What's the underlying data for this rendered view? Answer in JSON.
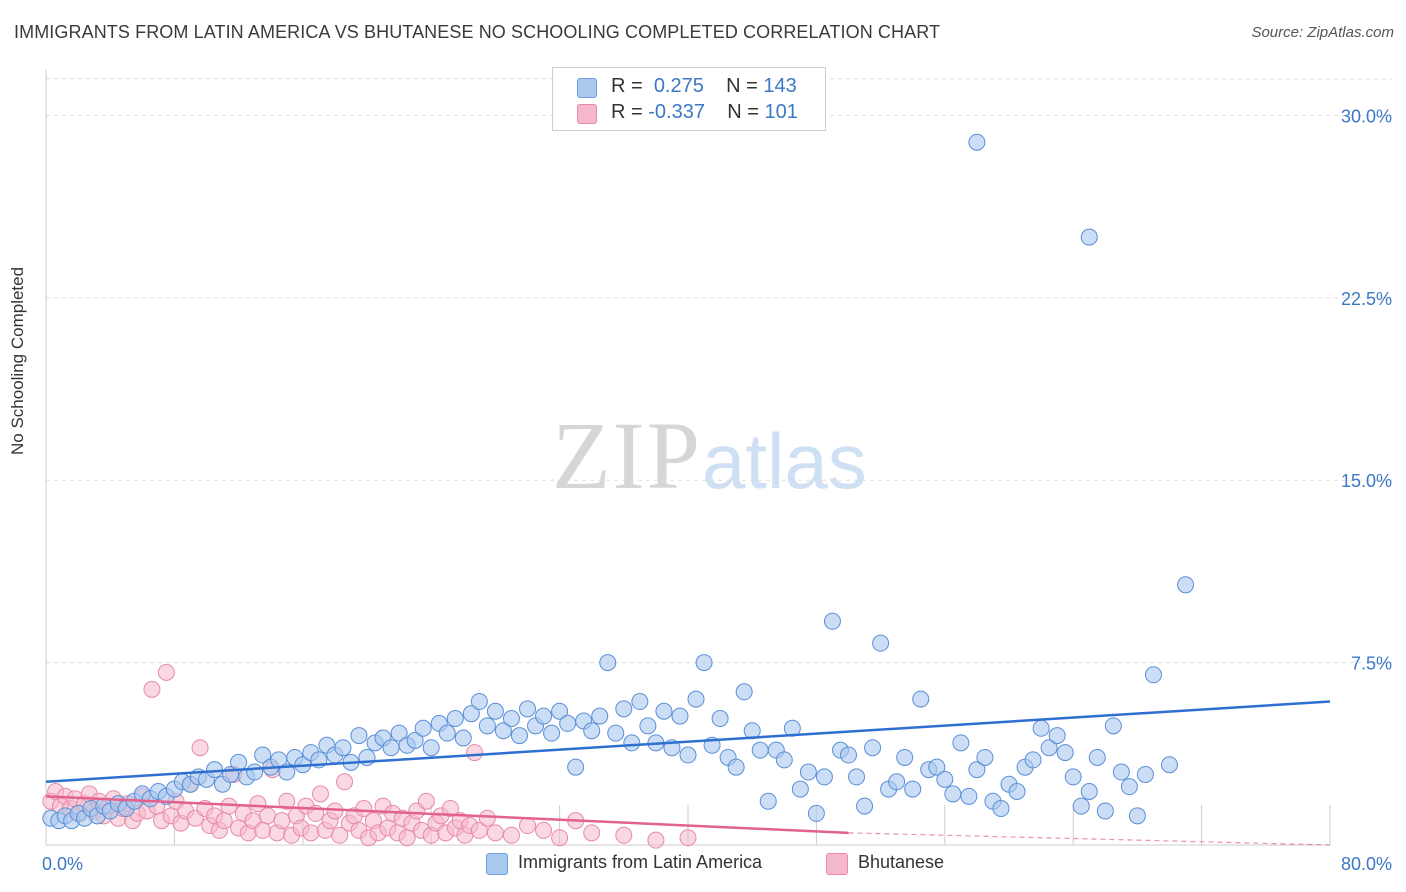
{
  "title": "IMMIGRANTS FROM LATIN AMERICA VS BHUTANESE NO SCHOOLING COMPLETED CORRELATION CHART",
  "source": "Source: ZipAtlas.com",
  "watermark": {
    "zip": "ZIP",
    "atlas": "atlas"
  },
  "legend": {
    "r_label": "R =",
    "n_label": "N =",
    "series": [
      {
        "r": "0.275",
        "n": "143",
        "color": "#a9c8ee",
        "edge": "#6f9fdb"
      },
      {
        "r": "-0.337",
        "n": "101",
        "color": "#f5b8cb",
        "edge": "#e98aa8"
      }
    ]
  },
  "colors": {
    "blue_fill": "#a9c8ee",
    "blue_edge": "#5b8fd6",
    "blue_line": "#2e6fd0",
    "pink_fill": "#f5b8cb",
    "pink_edge": "#e78aa8",
    "pink_line": "#e2628c",
    "tick_label": "#3b78c7",
    "grid": "#dddddd"
  },
  "chart_data": {
    "type": "scatter",
    "title": "IMMIGRANTS FROM LATIN AMERICA VS BHUTANESE NO SCHOOLING COMPLETED CORRELATION CHART",
    "xlabel": "",
    "ylabel": "No Schooling Completed",
    "xlim": [
      0,
      80
    ],
    "ylim": [
      0,
      31.5
    ],
    "x_tick_labels": [
      "0.0%",
      "80.0%"
    ],
    "y_ticks": [
      7.5,
      15.0,
      22.5,
      30.0
    ],
    "y_tick_labels": [
      "7.5%",
      "15.0%",
      "22.5%",
      "30.0%"
    ],
    "grid": "horizontal dashed",
    "legend_position": "top-center",
    "series": [
      {
        "name": "Immigrants from Latin America",
        "trend": {
          "x": [
            0,
            80
          ],
          "y": [
            2.6,
            5.9
          ]
        },
        "points": [
          [
            0.3,
            1.1
          ],
          [
            0.8,
            1.0
          ],
          [
            1.2,
            1.2
          ],
          [
            1.6,
            1.0
          ],
          [
            2.0,
            1.3
          ],
          [
            2.4,
            1.1
          ],
          [
            2.8,
            1.5
          ],
          [
            3.2,
            1.2
          ],
          [
            3.6,
            1.6
          ],
          [
            4.0,
            1.4
          ],
          [
            4.5,
            1.7
          ],
          [
            5.0,
            1.5
          ],
          [
            5.5,
            1.8
          ],
          [
            6.0,
            2.1
          ],
          [
            6.5,
            1.9
          ],
          [
            7.0,
            2.2
          ],
          [
            7.5,
            2.0
          ],
          [
            8.0,
            2.3
          ],
          [
            8.5,
            2.6
          ],
          [
            9.0,
            2.5
          ],
          [
            9.5,
            2.8
          ],
          [
            10.0,
            2.7
          ],
          [
            10.5,
            3.1
          ],
          [
            11.0,
            2.5
          ],
          [
            11.5,
            2.9
          ],
          [
            12.0,
            3.4
          ],
          [
            12.5,
            2.8
          ],
          [
            13.0,
            3.0
          ],
          [
            13.5,
            3.7
          ],
          [
            14.0,
            3.2
          ],
          [
            14.5,
            3.5
          ],
          [
            15.0,
            3.0
          ],
          [
            15.5,
            3.6
          ],
          [
            16.0,
            3.3
          ],
          [
            16.5,
            3.8
          ],
          [
            17.0,
            3.5
          ],
          [
            17.5,
            4.1
          ],
          [
            18.0,
            3.7
          ],
          [
            18.5,
            4.0
          ],
          [
            19.0,
            3.4
          ],
          [
            19.5,
            4.5
          ],
          [
            20.0,
            3.6
          ],
          [
            20.5,
            4.2
          ],
          [
            21.0,
            4.4
          ],
          [
            21.5,
            4.0
          ],
          [
            22.0,
            4.6
          ],
          [
            22.5,
            4.1
          ],
          [
            23.0,
            4.3
          ],
          [
            23.5,
            4.8
          ],
          [
            24.0,
            4.0
          ],
          [
            24.5,
            5.0
          ],
          [
            25.0,
            4.6
          ],
          [
            25.5,
            5.2
          ],
          [
            26.0,
            4.4
          ],
          [
            26.5,
            5.4
          ],
          [
            27.0,
            5.9
          ],
          [
            27.5,
            4.9
          ],
          [
            28.0,
            5.5
          ],
          [
            28.5,
            4.7
          ],
          [
            29.0,
            5.2
          ],
          [
            29.5,
            4.5
          ],
          [
            30.0,
            5.6
          ],
          [
            30.5,
            4.9
          ],
          [
            31.0,
            5.3
          ],
          [
            31.5,
            4.6
          ],
          [
            32.0,
            5.5
          ],
          [
            32.5,
            5.0
          ],
          [
            33.0,
            3.2
          ],
          [
            33.5,
            5.1
          ],
          [
            34.0,
            4.7
          ],
          [
            34.5,
            5.3
          ],
          [
            35.0,
            7.5
          ],
          [
            35.5,
            4.6
          ],
          [
            36.0,
            5.6
          ],
          [
            36.5,
            4.2
          ],
          [
            37.0,
            5.9
          ],
          [
            37.5,
            4.9
          ],
          [
            38.0,
            4.2
          ],
          [
            38.5,
            5.5
          ],
          [
            39.0,
            4.0
          ],
          [
            39.5,
            5.3
          ],
          [
            40.0,
            3.7
          ],
          [
            40.5,
            6.0
          ],
          [
            41.0,
            7.5
          ],
          [
            41.5,
            4.1
          ],
          [
            42.0,
            5.2
          ],
          [
            42.5,
            3.6
          ],
          [
            43.0,
            3.2
          ],
          [
            43.5,
            6.3
          ],
          [
            44.0,
            4.7
          ],
          [
            44.5,
            3.9
          ],
          [
            45.0,
            1.8
          ],
          [
            45.5,
            3.9
          ],
          [
            46.0,
            3.5
          ],
          [
            46.5,
            4.8
          ],
          [
            47.0,
            2.3
          ],
          [
            47.5,
            3.0
          ],
          [
            48.0,
            1.3
          ],
          [
            48.5,
            2.8
          ],
          [
            49.0,
            9.2
          ],
          [
            49.5,
            3.9
          ],
          [
            50.0,
            3.7
          ],
          [
            50.5,
            2.8
          ],
          [
            51.0,
            1.6
          ],
          [
            51.5,
            4.0
          ],
          [
            52.0,
            8.3
          ],
          [
            52.5,
            2.3
          ],
          [
            53.0,
            2.6
          ],
          [
            53.5,
            3.6
          ],
          [
            54.0,
            2.3
          ],
          [
            54.5,
            6.0
          ],
          [
            55.0,
            3.1
          ],
          [
            55.5,
            3.2
          ],
          [
            56.0,
            2.7
          ],
          [
            56.5,
            2.1
          ],
          [
            57.0,
            4.2
          ],
          [
            57.5,
            2.0
          ],
          [
            58.0,
            3.1
          ],
          [
            58.5,
            3.6
          ],
          [
            59.0,
            1.8
          ],
          [
            59.5,
            1.5
          ],
          [
            60.0,
            2.5
          ],
          [
            60.5,
            2.2
          ],
          [
            61.0,
            3.2
          ],
          [
            61.5,
            3.5
          ],
          [
            62.0,
            4.8
          ],
          [
            62.5,
            4.0
          ],
          [
            63.0,
            4.5
          ],
          [
            63.5,
            3.8
          ],
          [
            64.0,
            2.8
          ],
          [
            64.5,
            1.6
          ],
          [
            65.0,
            2.2
          ],
          [
            65.5,
            3.6
          ],
          [
            66.0,
            1.4
          ],
          [
            66.5,
            4.9
          ],
          [
            67.0,
            3.0
          ],
          [
            67.5,
            2.4
          ],
          [
            68.0,
            1.2
          ],
          [
            68.5,
            2.9
          ],
          [
            69.0,
            7.0
          ],
          [
            70.0,
            3.3
          ],
          [
            71.0,
            10.7
          ],
          [
            58.0,
            28.9
          ],
          [
            65.0,
            25.0
          ]
        ]
      },
      {
        "name": "Bhutanese",
        "trend": {
          "x": [
            0,
            50
          ],
          "y": [
            2.0,
            0.5
          ]
        },
        "trend_dashed": {
          "x": [
            50,
            80
          ],
          "y": [
            0.5,
            -0.4
          ]
        },
        "points": [
          [
            0.3,
            1.8
          ],
          [
            0.6,
            2.2
          ],
          [
            0.9,
            1.6
          ],
          [
            1.2,
            2.0
          ],
          [
            1.5,
            1.5
          ],
          [
            1.8,
            1.9
          ],
          [
            2.1,
            1.3
          ],
          [
            2.4,
            1.7
          ],
          [
            2.7,
            2.1
          ],
          [
            3.0,
            1.4
          ],
          [
            3.3,
            1.8
          ],
          [
            3.6,
            1.2
          ],
          [
            3.9,
            1.6
          ],
          [
            4.2,
            1.9
          ],
          [
            4.5,
            1.1
          ],
          [
            4.8,
            1.5
          ],
          [
            5.1,
            1.7
          ],
          [
            5.4,
            1.0
          ],
          [
            5.7,
            1.3
          ],
          [
            6.0,
            2.0
          ],
          [
            6.3,
            1.4
          ],
          [
            6.6,
            6.4
          ],
          [
            6.9,
            1.6
          ],
          [
            7.2,
            1.0
          ],
          [
            7.5,
            7.1
          ],
          [
            7.8,
            1.2
          ],
          [
            8.1,
            1.8
          ],
          [
            8.4,
            0.9
          ],
          [
            8.7,
            1.4
          ],
          [
            9.0,
            2.5
          ],
          [
            9.3,
            1.1
          ],
          [
            9.6,
            4.0
          ],
          [
            9.9,
            1.5
          ],
          [
            10.2,
            0.8
          ],
          [
            10.5,
            1.2
          ],
          [
            10.8,
            0.6
          ],
          [
            11.1,
            1.0
          ],
          [
            11.4,
            1.6
          ],
          [
            11.7,
            2.9
          ],
          [
            12.0,
            0.7
          ],
          [
            12.3,
            1.3
          ],
          [
            12.6,
            0.5
          ],
          [
            12.9,
            1.0
          ],
          [
            13.2,
            1.7
          ],
          [
            13.5,
            0.6
          ],
          [
            13.8,
            1.2
          ],
          [
            14.1,
            3.1
          ],
          [
            14.4,
            0.5
          ],
          [
            14.7,
            1.0
          ],
          [
            15.0,
            1.8
          ],
          [
            15.3,
            0.4
          ],
          [
            15.6,
            1.2
          ],
          [
            15.9,
            0.7
          ],
          [
            16.2,
            1.6
          ],
          [
            16.5,
            0.5
          ],
          [
            16.8,
            1.3
          ],
          [
            17.1,
            2.1
          ],
          [
            17.4,
            0.6
          ],
          [
            17.7,
            1.0
          ],
          [
            18.0,
            1.4
          ],
          [
            18.3,
            0.4
          ],
          [
            18.6,
            2.6
          ],
          [
            18.9,
            0.9
          ],
          [
            19.2,
            1.2
          ],
          [
            19.5,
            0.6
          ],
          [
            19.8,
            1.5
          ],
          [
            20.1,
            0.3
          ],
          [
            20.4,
            1.0
          ],
          [
            20.7,
            0.5
          ],
          [
            21.0,
            1.6
          ],
          [
            21.3,
            0.7
          ],
          [
            21.6,
            1.3
          ],
          [
            21.9,
            0.5
          ],
          [
            22.2,
            1.1
          ],
          [
            22.5,
            0.3
          ],
          [
            22.8,
            0.9
          ],
          [
            23.1,
            1.4
          ],
          [
            23.4,
            0.6
          ],
          [
            23.7,
            1.8
          ],
          [
            24.0,
            0.4
          ],
          [
            24.3,
            0.9
          ],
          [
            24.6,
            1.2
          ],
          [
            24.9,
            0.5
          ],
          [
            25.2,
            1.5
          ],
          [
            25.5,
            0.7
          ],
          [
            25.8,
            1.0
          ],
          [
            26.1,
            0.4
          ],
          [
            26.4,
            0.8
          ],
          [
            26.7,
            3.8
          ],
          [
            27.0,
            0.6
          ],
          [
            27.5,
            1.1
          ],
          [
            28.0,
            0.5
          ],
          [
            29.0,
            0.4
          ],
          [
            30.0,
            0.8
          ],
          [
            31.0,
            0.6
          ],
          [
            32.0,
            0.3
          ],
          [
            33.0,
            1.0
          ],
          [
            34.0,
            0.5
          ],
          [
            36.0,
            0.4
          ],
          [
            38.0,
            0.2
          ],
          [
            40.0,
            0.3
          ]
        ]
      }
    ]
  },
  "x_axis_labels": {
    "min": "0.0%",
    "max": "80.0%"
  }
}
